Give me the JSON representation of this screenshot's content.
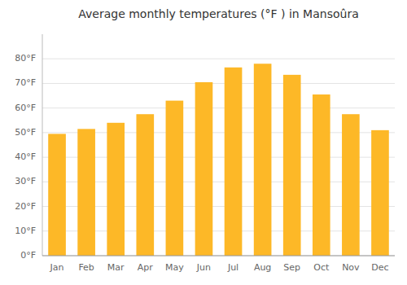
{
  "chart_data": {
    "type": "bar",
    "title": "Average monthly temperatures (°F ) in Mansoûra",
    "categories": [
      "Jan",
      "Feb",
      "Mar",
      "Apr",
      "May",
      "Jun",
      "Jul",
      "Aug",
      "Sep",
      "Oct",
      "Nov",
      "Dec"
    ],
    "values": [
      49.5,
      51.5,
      54.0,
      57.5,
      63.0,
      70.5,
      76.5,
      78.0,
      73.5,
      65.5,
      57.5,
      51.0
    ],
    "color": "#FDB827",
    "ylim": [
      0,
      90
    ],
    "yticks": [
      {
        "value": 0,
        "label": "0°F"
      },
      {
        "value": 10,
        "label": "10°F"
      },
      {
        "value": 20,
        "label": "20°F"
      },
      {
        "value": 30,
        "label": "30°F"
      },
      {
        "value": 40,
        "label": "40°F"
      },
      {
        "value": 50,
        "label": "50°F"
      },
      {
        "value": 60,
        "label": "60°F"
      },
      {
        "value": 70,
        "label": "70°F"
      },
      {
        "value": 80,
        "label": "80°F"
      }
    ],
    "grid": true
  }
}
